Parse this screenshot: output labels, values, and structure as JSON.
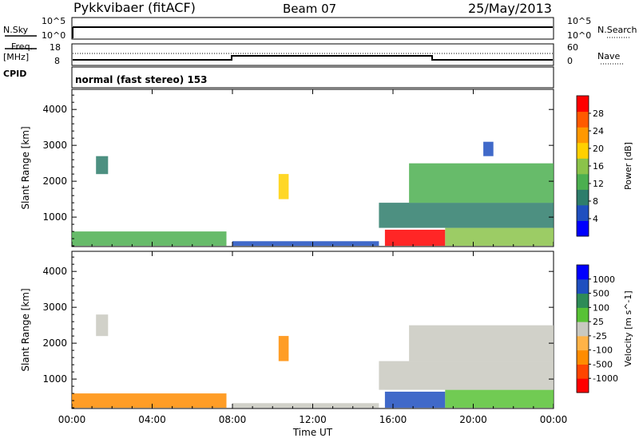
{
  "header": {
    "radar": "Pykkvibaer (fitACF)",
    "beam": "Beam 07",
    "date": "25/May/2013"
  },
  "top_panels": {
    "nsky_label": "N.Sky",
    "nsky_ticks": [
      "10^5",
      "10^0"
    ],
    "nsearch_label": "N.Search",
    "nsearch_ticks": [
      "10^5",
      "10^0"
    ],
    "freq_label": "Freq.",
    "freq_unit": "[MHz]",
    "freq_ticks": [
      "18",
      "8"
    ],
    "nave_label": "Nave",
    "nave_ticks": [
      "60",
      "0"
    ],
    "cpid_label": "CPID",
    "cpid_text": "normal (fast stereo) 153"
  },
  "chart_data": [
    {
      "type": "heatmap",
      "name": "power-panel",
      "ylabel": "Slant Range [km]",
      "ylim": [
        180,
        4560
      ],
      "yticks": [
        1000,
        2000,
        3000,
        4000
      ],
      "xlim": [
        0,
        24
      ],
      "xticks": [
        "00:00",
        "04:00",
        "08:00",
        "12:00",
        "16:00",
        "20:00",
        "00:00"
      ],
      "colorbar_label": "Power [dB]",
      "colorbar_ticks": [
        "28",
        "24",
        "20",
        "16",
        "12",
        "8",
        "4"
      ],
      "colorbar_colors": [
        "#0000ff",
        "#1f4fbf",
        "#2e7d6b",
        "#4caf50",
        "#8bc34a",
        "#ffd000",
        "#ff9800",
        "#ff5a00",
        "#ff0000"
      ],
      "regions": [
        {
          "t0": 0.0,
          "t1": 7.7,
          "r0": 200,
          "r1": 600,
          "level": 3
        },
        {
          "t0": 8.0,
          "t1": 15.3,
          "r0": 200,
          "r1": 330,
          "level": 1
        },
        {
          "t0": 15.6,
          "t1": 18.6,
          "r0": 200,
          "r1": 650,
          "level": 8
        },
        {
          "t0": 18.6,
          "t1": 24.0,
          "r0": 200,
          "r1": 700,
          "level": 4
        },
        {
          "t0": 15.3,
          "t1": 24.0,
          "r0": 700,
          "r1": 1400,
          "level": 2
        },
        {
          "t0": 16.8,
          "t1": 24.0,
          "r0": 1400,
          "r1": 2500,
          "level": 3
        },
        {
          "t0": 1.2,
          "t1": 1.8,
          "r0": 2200,
          "r1": 2700,
          "level": 2
        },
        {
          "t0": 10.3,
          "t1": 10.8,
          "r0": 1500,
          "r1": 2200,
          "level": 5
        },
        {
          "t0": 20.5,
          "t1": 21.0,
          "r0": 2700,
          "r1": 3100,
          "level": 1
        }
      ]
    },
    {
      "type": "heatmap",
      "name": "velocity-panel",
      "ylabel": "Slant Range [km]",
      "ylim": [
        180,
        4560
      ],
      "yticks": [
        1000,
        2000,
        3000,
        4000
      ],
      "xlim": [
        0,
        24
      ],
      "xticks": [
        "00:00",
        "04:00",
        "08:00",
        "12:00",
        "16:00",
        "20:00",
        "00:00"
      ],
      "xlabel": "Time UT",
      "colorbar_label": "Velocity [m s^-1]",
      "colorbar_ticks": [
        "1000",
        "500",
        "100",
        "25",
        "-25",
        "-100",
        "-500",
        "-1000"
      ],
      "colorbar_colors": [
        "#ff0000",
        "#ff4500",
        "#ff8c00",
        "#ffb347",
        "#c9c9c0",
        "#58c235",
        "#2e8b57",
        "#1f4fbf",
        "#0000ff"
      ],
      "regions": [
        {
          "t0": 0.0,
          "t1": 7.7,
          "r0": 200,
          "r1": 600,
          "level": 2
        },
        {
          "t0": 8.0,
          "t1": 15.3,
          "r0": 200,
          "r1": 330,
          "level": 4
        },
        {
          "t0": 15.6,
          "t1": 18.6,
          "r0": 200,
          "r1": 650,
          "level": 7
        },
        {
          "t0": 18.6,
          "t1": 24.0,
          "r0": 200,
          "r1": 700,
          "level": 5
        },
        {
          "t0": 15.3,
          "t1": 24.0,
          "r0": 700,
          "r1": 1500,
          "level": 4
        },
        {
          "t0": 16.8,
          "t1": 24.0,
          "r0": 1500,
          "r1": 2500,
          "level": 4
        },
        {
          "t0": 1.2,
          "t1": 1.8,
          "r0": 2200,
          "r1": 2800,
          "level": 4
        },
        {
          "t0": 10.3,
          "t1": 10.8,
          "r0": 1500,
          "r1": 2200,
          "level": 2
        }
      ]
    }
  ]
}
